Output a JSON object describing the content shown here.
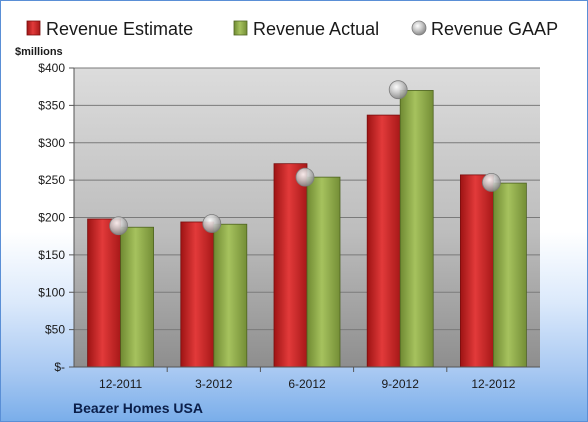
{
  "chart_data": {
    "type": "bar",
    "unit_label": "$millions",
    "footer": "Beazer Homes USA",
    "categories": [
      "12-2011",
      "3-2012",
      "6-2012",
      "9-2012",
      "12-2012"
    ],
    "series": [
      {
        "name": "Revenue Estimate",
        "type": "bar",
        "color": "#d42a2a",
        "values": [
          198,
          194,
          272,
          337,
          257
        ]
      },
      {
        "name": "Revenue Actual",
        "type": "bar",
        "color": "#8faa4a",
        "values": [
          187,
          191,
          254,
          370,
          246
        ]
      },
      {
        "name": "Revenue GAAP",
        "type": "scatter",
        "color": "#b8b8b8",
        "values": [
          189,
          192,
          254,
          371,
          247
        ]
      }
    ],
    "yticks": [
      "$-",
      "$50",
      "$100",
      "$150",
      "$200",
      "$250",
      "$300",
      "$350",
      "$400"
    ],
    "ylim": [
      0,
      400
    ],
    "grid": true,
    "legend_position": "top"
  }
}
